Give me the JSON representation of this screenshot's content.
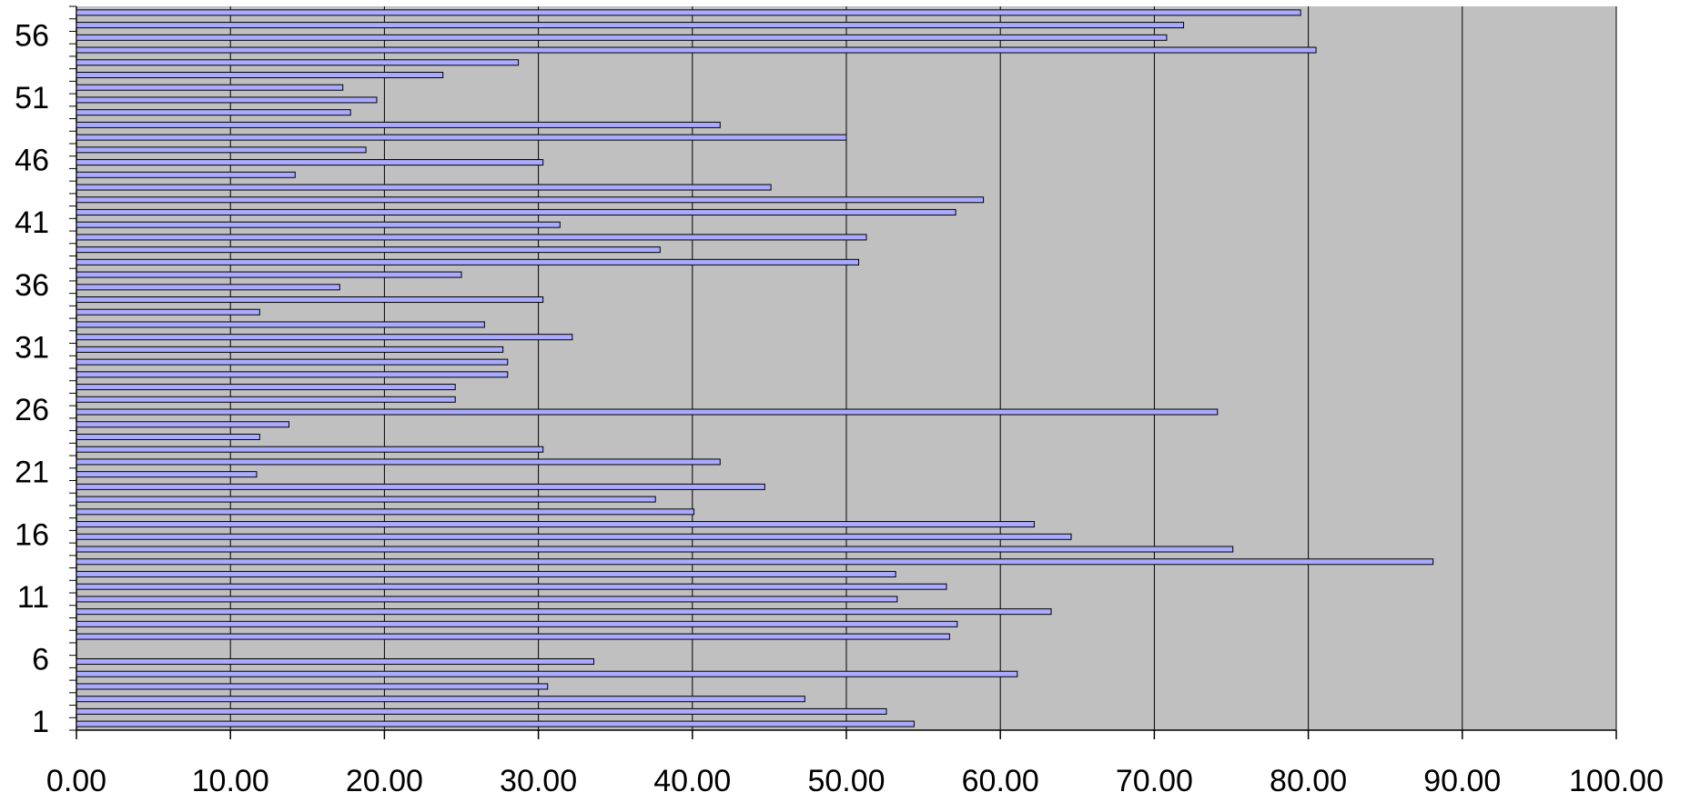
{
  "chart_data": {
    "type": "hbar",
    "categories": [
      "1",
      null,
      null,
      null,
      null,
      "6",
      null,
      null,
      null,
      null,
      "11",
      null,
      null,
      null,
      null,
      "16",
      null,
      null,
      null,
      null,
      "21",
      null,
      null,
      null,
      null,
      "26",
      null,
      null,
      null,
      null,
      "31",
      null,
      null,
      null,
      null,
      "36",
      null,
      null,
      null,
      null,
      "41",
      null,
      null,
      null,
      null,
      "46",
      null,
      null,
      null,
      null,
      "51",
      null,
      null,
      null,
      null,
      "56",
      null,
      null
    ],
    "values": [
      54.4,
      52.6,
      47.3,
      30.6,
      61.1,
      33.6,
      null,
      56.7,
      57.2,
      63.3,
      53.3,
      56.5,
      53.2,
      88.1,
      75.1,
      64.6,
      62.2,
      40.1,
      37.6,
      44.7,
      11.7,
      41.8,
      30.3,
      11.9,
      13.8,
      74.1,
      24.6,
      24.6,
      28.0,
      28.0,
      27.7,
      32.2,
      26.5,
      11.9,
      30.3,
      17.1,
      25.0,
      50.8,
      37.9,
      51.3,
      31.4,
      57.1,
      58.9,
      45.1,
      14.2,
      30.3,
      18.8,
      50.0,
      41.8,
      17.8,
      19.5,
      17.3,
      23.8,
      28.7,
      80.5,
      70.8,
      71.9,
      79.5
    ],
    "color": "#aaaaff",
    "xlim": [
      0,
      100
    ],
    "xticks": [
      {
        "value": 0,
        "label": "0.00"
      },
      {
        "value": 10,
        "label": "10.00"
      },
      {
        "value": 20,
        "label": "20.00"
      },
      {
        "value": 30,
        "label": "30.00"
      },
      {
        "value": 40,
        "label": "40.00"
      },
      {
        "value": 50,
        "label": "50.00"
      },
      {
        "value": 60,
        "label": "60.00"
      },
      {
        "value": 70,
        "label": "70.00"
      },
      {
        "value": 80,
        "label": "80.00"
      },
      {
        "value": 90,
        "label": "90.00"
      },
      {
        "value": 100,
        "label": "100.00"
      }
    ],
    "grid": true
  }
}
